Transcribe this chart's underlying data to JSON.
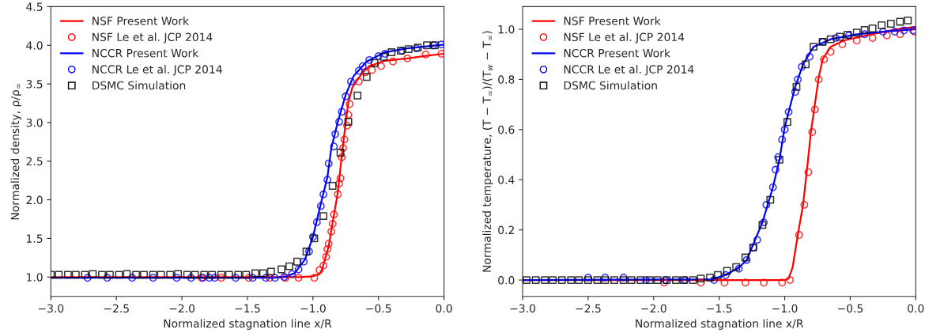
{
  "chart_data": [
    {
      "type": "line",
      "xlabel": "Normalized stagnation line x/R",
      "ylabel": "Normalized density, ρ/ρ$_{∞}$",
      "xlim": [
        -3.0,
        0.0
      ],
      "ylim": [
        0.75,
        4.5
      ],
      "xticks": [
        {
          "value": -3.0,
          "label": "−3.0"
        },
        {
          "value": -2.5,
          "label": "−2.5"
        },
        {
          "value": -2.0,
          "label": "−2.0"
        },
        {
          "value": -1.5,
          "label": "−1.5"
        },
        {
          "value": -1.0,
          "label": "−1.0"
        },
        {
          "value": -0.5,
          "label": "−0.5"
        },
        {
          "value": 0.0,
          "label": "0.0"
        }
      ],
      "yticks": [
        {
          "value": 1.0,
          "label": "1.0"
        },
        {
          "value": 1.5,
          "label": "1.5"
        },
        {
          "value": 2.0,
          "label": "2.0"
        },
        {
          "value": 2.5,
          "label": "2.5"
        },
        {
          "value": 3.0,
          "label": "3.0"
        },
        {
          "value": 3.5,
          "label": "3.5"
        },
        {
          "value": 4.0,
          "label": "4.0"
        },
        {
          "value": 4.5,
          "label": "4.5"
        }
      ],
      "grid": false,
      "legend": "top left",
      "series": [
        {
          "name": "NSF Present Work",
          "type": "line",
          "color": "#ff0000",
          "marker": "none",
          "line_style": "solid",
          "x": [
            -3.0,
            -1.1,
            -1.0,
            -0.95,
            -0.93,
            -0.88,
            -0.84,
            -0.81,
            -0.78,
            -0.75,
            -0.73,
            -0.7,
            -0.67,
            -0.62,
            -0.57,
            -0.45,
            -0.28,
            -0.15,
            0.0
          ],
          "values": [
            1.0,
            1.0,
            1.01,
            1.04,
            1.1,
            1.4,
            1.8,
            2.1,
            2.57,
            3.0,
            3.26,
            3.45,
            3.53,
            3.65,
            3.73,
            3.8,
            3.83,
            3.86,
            3.89
          ]
        },
        {
          "name": "NSF Le et al. JCP 2014",
          "type": "scatter",
          "color": "#ff0000",
          "marker": "circle",
          "x": [
            -1.85,
            -1.7,
            -1.49,
            -1.33,
            -1.21,
            -1.11,
            -0.99,
            -0.95,
            -0.92,
            -0.9,
            -0.89,
            -0.88,
            -0.86,
            -0.85,
            -0.84,
            -0.81,
            -0.8,
            -0.79,
            -0.78,
            -0.77,
            -0.76,
            -0.74,
            -0.73,
            -0.72,
            -0.65,
            -0.6,
            -0.55,
            -0.48,
            -0.39,
            -0.28,
            -0.14,
            -0.02
          ],
          "values": [
            0.99,
            0.99,
            0.99,
            0.99,
            0.99,
            0.99,
            0.99,
            1.09,
            1.15,
            1.26,
            1.36,
            1.43,
            1.59,
            1.69,
            1.81,
            2.07,
            2.21,
            2.28,
            2.55,
            2.67,
            2.78,
            2.96,
            3.1,
            3.24,
            3.53,
            3.65,
            3.68,
            3.73,
            3.79,
            3.83,
            3.88,
            3.89
          ]
        },
        {
          "name": "NCCR Present Work",
          "type": "line",
          "color": "#0000ff",
          "marker": "none",
          "line_style": "solid",
          "x": [
            -3.0,
            -1.3,
            -1.2,
            -1.14,
            -1.06,
            -1.0,
            -0.94,
            -0.89,
            -0.86,
            -0.81,
            -0.75,
            -0.69,
            -0.59,
            -0.45,
            -0.28,
            0.0
          ],
          "values": [
            0.99,
            0.99,
            1.01,
            1.05,
            1.23,
            1.52,
            1.95,
            2.29,
            2.67,
            3.01,
            3.36,
            3.6,
            3.79,
            3.91,
            3.96,
            4.01
          ]
        },
        {
          "name": "NCCR Le et al. JCP 2014",
          "type": "scatter",
          "color": "#0000ff",
          "marker": "circle",
          "x": [
            -2.72,
            -2.57,
            -2.38,
            -2.22,
            -2.04,
            -1.93,
            -1.84,
            -1.79,
            -1.75,
            -1.59,
            -1.46,
            -1.36,
            -1.29,
            -1.22,
            -1.16,
            -1.11,
            -1.07,
            -1.03,
            -1.0,
            -0.97,
            -0.94,
            -0.92,
            -0.89,
            -0.88,
            -0.84,
            -0.83,
            -0.8,
            -0.78,
            -0.75,
            -0.71,
            -0.65,
            -0.62,
            -0.57,
            -0.5,
            -0.45,
            -0.32,
            -0.21,
            -0.08,
            -0.02
          ],
          "values": [
            0.99,
            0.99,
            0.99,
            0.99,
            0.99,
            0.99,
            0.99,
            0.99,
            0.99,
            0.99,
            0.99,
            0.99,
            0.99,
            1.0,
            1.04,
            1.1,
            1.2,
            1.33,
            1.52,
            1.71,
            1.92,
            2.07,
            2.26,
            2.47,
            2.69,
            2.85,
            3.01,
            3.14,
            3.34,
            3.53,
            3.67,
            3.73,
            3.81,
            3.86,
            3.89,
            3.93,
            3.96,
            4.0,
            4.01
          ]
        },
        {
          "name": "DSMC Simulation",
          "type": "scatter",
          "color": "#000000",
          "marker": "square",
          "x": [
            -3.0,
            -2.94,
            -2.87,
            -2.81,
            -2.74,
            -2.68,
            -2.61,
            -2.55,
            -2.48,
            -2.42,
            -2.35,
            -2.29,
            -2.22,
            -2.16,
            -2.09,
            -2.03,
            -1.96,
            -1.9,
            -1.83,
            -1.77,
            -1.7,
            -1.64,
            -1.57,
            -1.51,
            -1.44,
            -1.38,
            -1.32,
            -1.24,
            -1.18,
            -1.12,
            -1.05,
            -0.99,
            -0.92,
            -0.85,
            -0.79,
            -0.73,
            -0.66,
            -0.59,
            -0.53,
            -0.46,
            -0.4,
            -0.33,
            -0.27,
            -0.2,
            -0.13,
            -0.07
          ],
          "values": [
            1.03,
            1.03,
            1.03,
            1.03,
            1.03,
            1.04,
            1.03,
            1.03,
            1.03,
            1.04,
            1.03,
            1.03,
            1.03,
            1.03,
            1.03,
            1.04,
            1.03,
            1.03,
            1.03,
            1.03,
            1.03,
            1.03,
            1.03,
            1.03,
            1.05,
            1.05,
            1.07,
            1.1,
            1.14,
            1.2,
            1.33,
            1.5,
            1.79,
            2.18,
            2.61,
            3.01,
            3.35,
            3.59,
            3.77,
            3.85,
            3.91,
            3.93,
            3.95,
            3.97,
            4.0,
            4.0
          ]
        }
      ]
    },
    {
      "type": "line",
      "xlabel": "Normalized stagnation line x/R",
      "ylabel": "Normalized temperature, (T − T$_{∞}$)/(T$_{w}$ − T$_{∞}$)",
      "xlim": [
        -3.0,
        0.0
      ],
      "ylim": [
        -0.065,
        1.09
      ],
      "xticks": [
        {
          "value": -3.0,
          "label": "−3.0"
        },
        {
          "value": -2.5,
          "label": "−2.5"
        },
        {
          "value": -2.0,
          "label": "−2.0"
        },
        {
          "value": -1.5,
          "label": "−1.5"
        },
        {
          "value": -1.0,
          "label": "−1.0"
        },
        {
          "value": -0.5,
          "label": "−0.5"
        },
        {
          "value": 0.0,
          "label": "0.0"
        }
      ],
      "yticks": [
        {
          "value": 0.0,
          "label": "0.0"
        },
        {
          "value": 0.2,
          "label": "0.2"
        },
        {
          "value": 0.4,
          "label": "0.4"
        },
        {
          "value": 0.6,
          "label": "0.6"
        },
        {
          "value": 0.8,
          "label": "0.8"
        },
        {
          "value": 1.0,
          "label": "1.0"
        }
      ],
      "grid": false,
      "legend": "top left",
      "series": [
        {
          "name": "NSF Present Work",
          "type": "line",
          "color": "#ff0000",
          "marker": "none",
          "line_style": "solid",
          "x": [
            -3.0,
            -1.0,
            -0.97,
            -0.94,
            -0.9,
            -0.86,
            -0.83,
            -0.8,
            -0.77,
            -0.74,
            -0.71,
            -0.65,
            -0.55,
            -0.34,
            -0.14,
            0.0
          ],
          "values": [
            0.0,
            0.0,
            0.006,
            0.05,
            0.18,
            0.3,
            0.44,
            0.59,
            0.7,
            0.81,
            0.88,
            0.93,
            0.955,
            0.98,
            1.0,
            1.01
          ]
        },
        {
          "name": "NSF Le et al. JCP 2014",
          "type": "scatter",
          "color": "#ff0000",
          "marker": "circle",
          "x": [
            -1.92,
            -1.64,
            -1.46,
            -1.3,
            -1.16,
            -1.02,
            -0.96,
            -0.89,
            -0.85,
            -0.82,
            -0.79,
            -0.77,
            -0.74,
            -0.7,
            -0.65,
            -0.56,
            -0.45,
            -0.33,
            -0.22,
            -0.12,
            -0.01
          ],
          "values": [
            -0.01,
            -0.01,
            -0.01,
            -0.01,
            -0.01,
            -0.01,
            0.0,
            0.18,
            0.3,
            0.43,
            0.59,
            0.68,
            0.8,
            0.88,
            0.91,
            0.94,
            0.955,
            0.965,
            0.975,
            0.98,
            0.99
          ]
        },
        {
          "name": "NCCR Present Work",
          "type": "line",
          "color": "#0000ff",
          "marker": "none",
          "line_style": "solid",
          "x": [
            -3.0,
            -1.56,
            -1.45,
            -1.35,
            -1.29,
            -1.23,
            -1.17,
            -1.09,
            -1.04,
            -1.0,
            -0.96,
            -0.92,
            -0.86,
            -0.78,
            -0.65,
            -0.45,
            -0.25,
            0.0
          ],
          "values": [
            0.0,
            0.003,
            0.02,
            0.05,
            0.08,
            0.155,
            0.23,
            0.37,
            0.48,
            0.61,
            0.69,
            0.77,
            0.86,
            0.93,
            0.96,
            0.98,
            0.99,
            1.0
          ]
        },
        {
          "name": "NCCR Le et al. JCP 2014",
          "type": "scatter",
          "color": "#0000ff",
          "marker": "circle",
          "x": [
            -2.5,
            -2.37,
            -2.23,
            -2.06,
            -1.91,
            -1.76,
            -1.54,
            -1.45,
            -1.35,
            -1.29,
            -1.24,
            -1.21,
            -1.16,
            -1.14,
            -1.09,
            -1.07,
            -1.05,
            -1.02,
            -1.0,
            -0.97,
            -0.92,
            -0.9,
            -0.87,
            -0.81,
            -0.71,
            -0.61,
            -0.51,
            -0.39,
            -0.25,
            -0.16,
            -0.09,
            -0.02
          ],
          "values": [
            0.01,
            0.01,
            0.01,
            0.0,
            0.0,
            0.0,
            0.0,
            0.02,
            0.045,
            0.08,
            0.13,
            0.16,
            0.23,
            0.3,
            0.37,
            0.44,
            0.49,
            0.56,
            0.6,
            0.67,
            0.75,
            0.8,
            0.85,
            0.89,
            0.95,
            0.965,
            0.975,
            0.98,
            0.99,
            0.99,
            0.995,
            0.995
          ]
        },
        {
          "name": "DSMC Simulation",
          "type": "scatter",
          "color": "#000000",
          "marker": "square",
          "x": [
            -2.97,
            -2.9,
            -2.83,
            -2.77,
            -2.7,
            -2.63,
            -2.57,
            -2.5,
            -2.43,
            -2.37,
            -2.3,
            -2.23,
            -2.17,
            -2.1,
            -2.03,
            -1.97,
            -1.9,
            -1.83,
            -1.77,
            -1.7,
            -1.64,
            -1.57,
            -1.51,
            -1.44,
            -1.37,
            -1.3,
            -1.24,
            -1.17,
            -1.11,
            -1.04,
            -0.98,
            -0.91,
            -0.84,
            -0.78,
            -0.71,
            -0.65,
            -0.58,
            -0.52,
            -0.45,
            -0.39,
            -0.33,
            -0.26,
            -0.19,
            -0.12,
            -0.06
          ],
          "values": [
            0.0,
            0.0,
            0.0,
            0.0,
            0.0,
            0.0,
            0.0,
            0.0,
            0.0,
            0.0,
            0.0,
            0.0,
            0.0,
            0.0,
            0.0,
            0.0,
            0.0,
            0.0,
            0.0,
            0.0,
            0.006,
            0.01,
            0.02,
            0.037,
            0.052,
            0.09,
            0.13,
            0.22,
            0.32,
            0.48,
            0.63,
            0.77,
            0.86,
            0.93,
            0.95,
            0.96,
            0.97,
            0.978,
            0.987,
            0.997,
            1.003,
            1.016,
            1.022,
            1.03,
            1.035
          ]
        }
      ]
    }
  ]
}
